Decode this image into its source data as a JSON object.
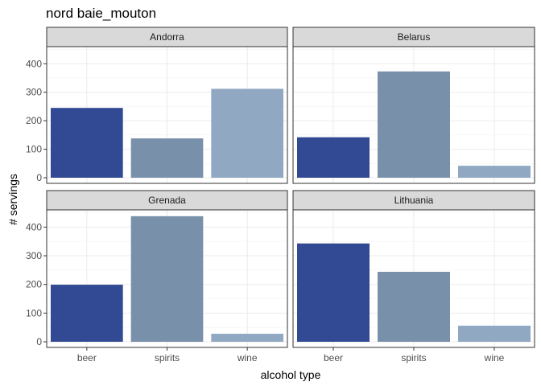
{
  "chart_data": {
    "type": "bar",
    "title": "nord baie_mouton",
    "xlabel": "alcohol type",
    "ylabel": "# servings",
    "categories": [
      "beer",
      "spirits",
      "wine"
    ],
    "ylim": [
      0,
      460
    ],
    "yticks": [
      0,
      100,
      200,
      300,
      400
    ],
    "grid": true,
    "legend": "none",
    "colors": {
      "beer": "#314a93",
      "spirits": "#7990aa",
      "wine": "#90a8c2"
    },
    "facets": [
      {
        "name": "Andorra",
        "values": [
          245,
          138,
          312
        ]
      },
      {
        "name": "Belarus",
        "values": [
          142,
          373,
          42
        ]
      },
      {
        "name": "Grenada",
        "values": [
          199,
          438,
          28
        ]
      },
      {
        "name": "Lithuania",
        "values": [
          343,
          244,
          56
        ]
      }
    ]
  }
}
